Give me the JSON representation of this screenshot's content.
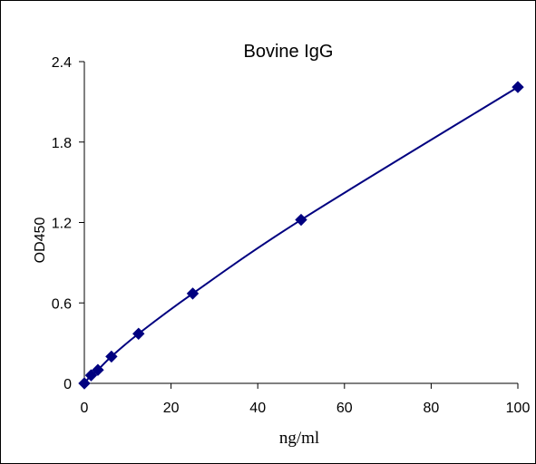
{
  "chart_data": {
    "type": "scatter",
    "title": "Bovine IgG",
    "xlabel": "ng/ml",
    "ylabel": "OD450",
    "xlim": [
      0,
      100
    ],
    "ylim": [
      0,
      2.4
    ],
    "xticks": [
      0,
      20,
      40,
      60,
      80,
      100
    ],
    "yticks": [
      0,
      0.6,
      1.2,
      1.8,
      2.4
    ],
    "xtick_labels": [
      "0",
      "20",
      "40",
      "60",
      "80",
      "100"
    ],
    "ytick_labels": [
      "0",
      "0.6",
      "1.2",
      "1.8",
      "2.4"
    ],
    "grid": false,
    "legend": "none",
    "series": [
      {
        "marker": "diamond",
        "color": "#000080",
        "trendline": "smooth",
        "x": [
          0,
          1.56,
          3.125,
          6.25,
          12.5,
          25,
          50,
          100
        ],
        "y": [
          0.0,
          0.06,
          0.1,
          0.2,
          0.37,
          0.67,
          1.22,
          2.21
        ]
      }
    ]
  }
}
